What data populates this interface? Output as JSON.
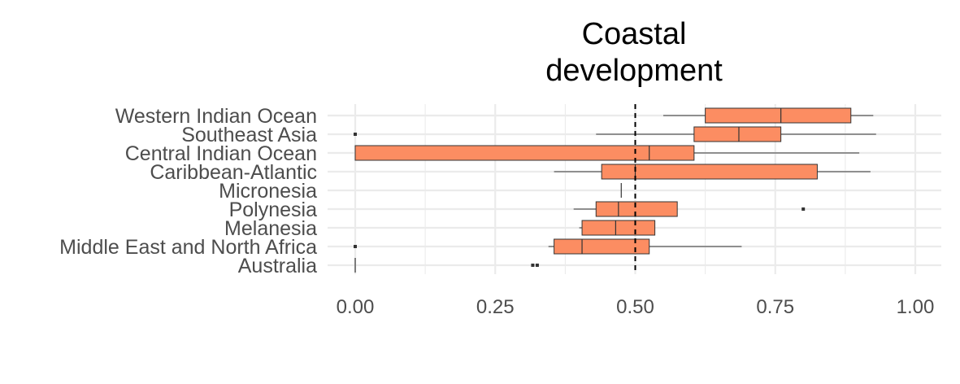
{
  "chart_data": {
    "type": "boxplot",
    "title_lines": [
      "Coastal",
      "development"
    ],
    "xlabel": "",
    "ylabel": "",
    "xlim": [
      -0.05,
      1.05
    ],
    "x_ticks": [
      {
        "value": 0.0,
        "label": "0.00"
      },
      {
        "value": 0.25,
        "label": "0.25"
      },
      {
        "value": 0.5,
        "label": "0.50"
      },
      {
        "value": 0.75,
        "label": "0.75"
      },
      {
        "value": 1.0,
        "label": "1.00"
      }
    ],
    "reference_line": 0.5,
    "grid": true,
    "legend": "none",
    "box_color": "#FC8D62",
    "outline_color": "#333333",
    "reference_line_color": "#000000",
    "categories": [
      "Western Indian Ocean",
      "Southeast Asia",
      "Central Indian Ocean",
      "Caribbean-Atlantic",
      "Micronesia",
      "Polynesia",
      "Melanesia",
      "Middle East and North Africa",
      "Australia"
    ],
    "boxes": [
      {
        "category": "Western Indian Ocean",
        "whisker_low": 0.55,
        "q1": 0.625,
        "median": 0.76,
        "q3": 0.885,
        "whisker_high": 0.925,
        "outliers": []
      },
      {
        "category": "Southeast Asia",
        "whisker_low": 0.43,
        "q1": 0.605,
        "median": 0.685,
        "q3": 0.76,
        "whisker_high": 0.93,
        "outliers": [
          0.0
        ]
      },
      {
        "category": "Central Indian Ocean",
        "whisker_low": 0.0,
        "q1": 0.0,
        "median": 0.525,
        "q3": 0.605,
        "whisker_high": 0.9,
        "outliers": []
      },
      {
        "category": "Caribbean-Atlantic",
        "whisker_low": 0.355,
        "q1": 0.44,
        "median": 0.5,
        "q3": 0.825,
        "whisker_high": 0.92,
        "outliers": []
      },
      {
        "category": "Micronesia",
        "whisker_low": 0.475,
        "q1": 0.475,
        "median": 0.475,
        "q3": 0.475,
        "whisker_high": 0.475,
        "outliers": []
      },
      {
        "category": "Polynesia",
        "whisker_low": 0.39,
        "q1": 0.43,
        "median": 0.47,
        "q3": 0.575,
        "whisker_high": 0.575,
        "outliers": [
          0.8
        ]
      },
      {
        "category": "Melanesia",
        "whisker_low": 0.4,
        "q1": 0.405,
        "median": 0.465,
        "q3": 0.535,
        "whisker_high": 0.535,
        "outliers": []
      },
      {
        "category": "Middle East and North Africa",
        "whisker_low": 0.345,
        "q1": 0.355,
        "median": 0.405,
        "q3": 0.525,
        "whisker_high": 0.69,
        "outliers": [
          0.0
        ]
      },
      {
        "category": "Australia",
        "whisker_low": 0.0,
        "q1": 0.0,
        "median": 0.0,
        "q3": 0.0,
        "whisker_high": 0.0,
        "outliers": [
          0.317,
          0.325
        ]
      }
    ]
  }
}
